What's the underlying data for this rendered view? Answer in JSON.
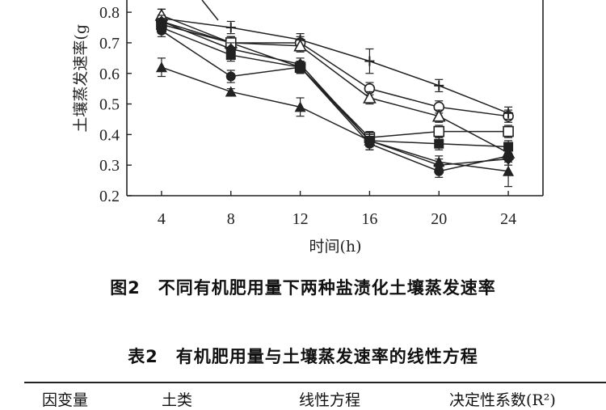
{
  "figure_caption": "图2　不同有机肥用量下两种盐渍化土壤蒸发速率",
  "table_caption": "表2　有机肥用量与土壤蒸发速率的线性方程",
  "table_headers": [
    "因变量",
    "土类",
    "线性方程",
    "决定性系数(R²)"
  ],
  "chart_data": {
    "type": "line",
    "xlabel": "时间(h)",
    "ylabel": "土壤蒸发速率(g",
    "x": [
      4,
      8,
      12,
      16,
      20,
      24
    ],
    "x_ticks": [
      "4",
      "8",
      "12",
      "16",
      "20",
      "24"
    ],
    "y_ticks": [
      "0.2",
      "0.3",
      "0.4",
      "0.5",
      "0.6",
      "0.7",
      "0.8"
    ],
    "ylim": [
      0.2,
      0.84
    ],
    "xlim": [
      2,
      26
    ],
    "grid": false,
    "series": [
      {
        "marker": "open-circle",
        "values": [
          0.77,
          0.7,
          0.7,
          0.55,
          0.49,
          0.46
        ],
        "err": [
          0.02,
          0.02,
          0.02,
          0.02,
          0.02,
          0.02
        ]
      },
      {
        "marker": "cross",
        "values": [
          0.78,
          0.75,
          0.71,
          0.64,
          0.56,
          0.47
        ],
        "err": [
          0.03,
          0.02,
          0.02,
          0.04,
          0.02,
          0.02
        ]
      },
      {
        "marker": "open-triangle",
        "values": [
          0.79,
          0.7,
          0.69,
          0.52,
          0.46,
          0.34
        ],
        "err": [
          0.02,
          0.02,
          0.02,
          0.02,
          0.02,
          0.02
        ]
      },
      {
        "marker": "open-square",
        "values": [
          0.76,
          0.7,
          0.62,
          0.39,
          0.41,
          0.41
        ],
        "err": [
          0.02,
          0.02,
          0.02,
          0.02,
          0.02,
          0.02
        ]
      },
      {
        "marker": "filled-square",
        "values": [
          0.75,
          0.66,
          0.62,
          0.38,
          0.37,
          0.36
        ],
        "err": [
          0.02,
          0.02,
          0.02,
          0.02,
          0.02,
          0.02
        ]
      },
      {
        "marker": "filled-circle",
        "values": [
          0.74,
          0.59,
          0.62,
          0.37,
          0.28,
          0.33
        ],
        "err": [
          0.02,
          0.02,
          0.02,
          0.02,
          0.02,
          0.02
        ]
      },
      {
        "marker": "filled-diamond",
        "values": [
          0.77,
          0.68,
          0.63,
          0.38,
          0.3,
          0.32
        ],
        "err": [
          0.02,
          0.02,
          0.02,
          0.03,
          0.02,
          0.02
        ]
      },
      {
        "marker": "filled-triangle",
        "values": [
          0.62,
          0.54,
          0.49,
          0.38,
          0.31,
          0.28
        ],
        "err": [
          0.03,
          0.01,
          0.03,
          0.02,
          0.02,
          0.05
        ]
      }
    ]
  }
}
